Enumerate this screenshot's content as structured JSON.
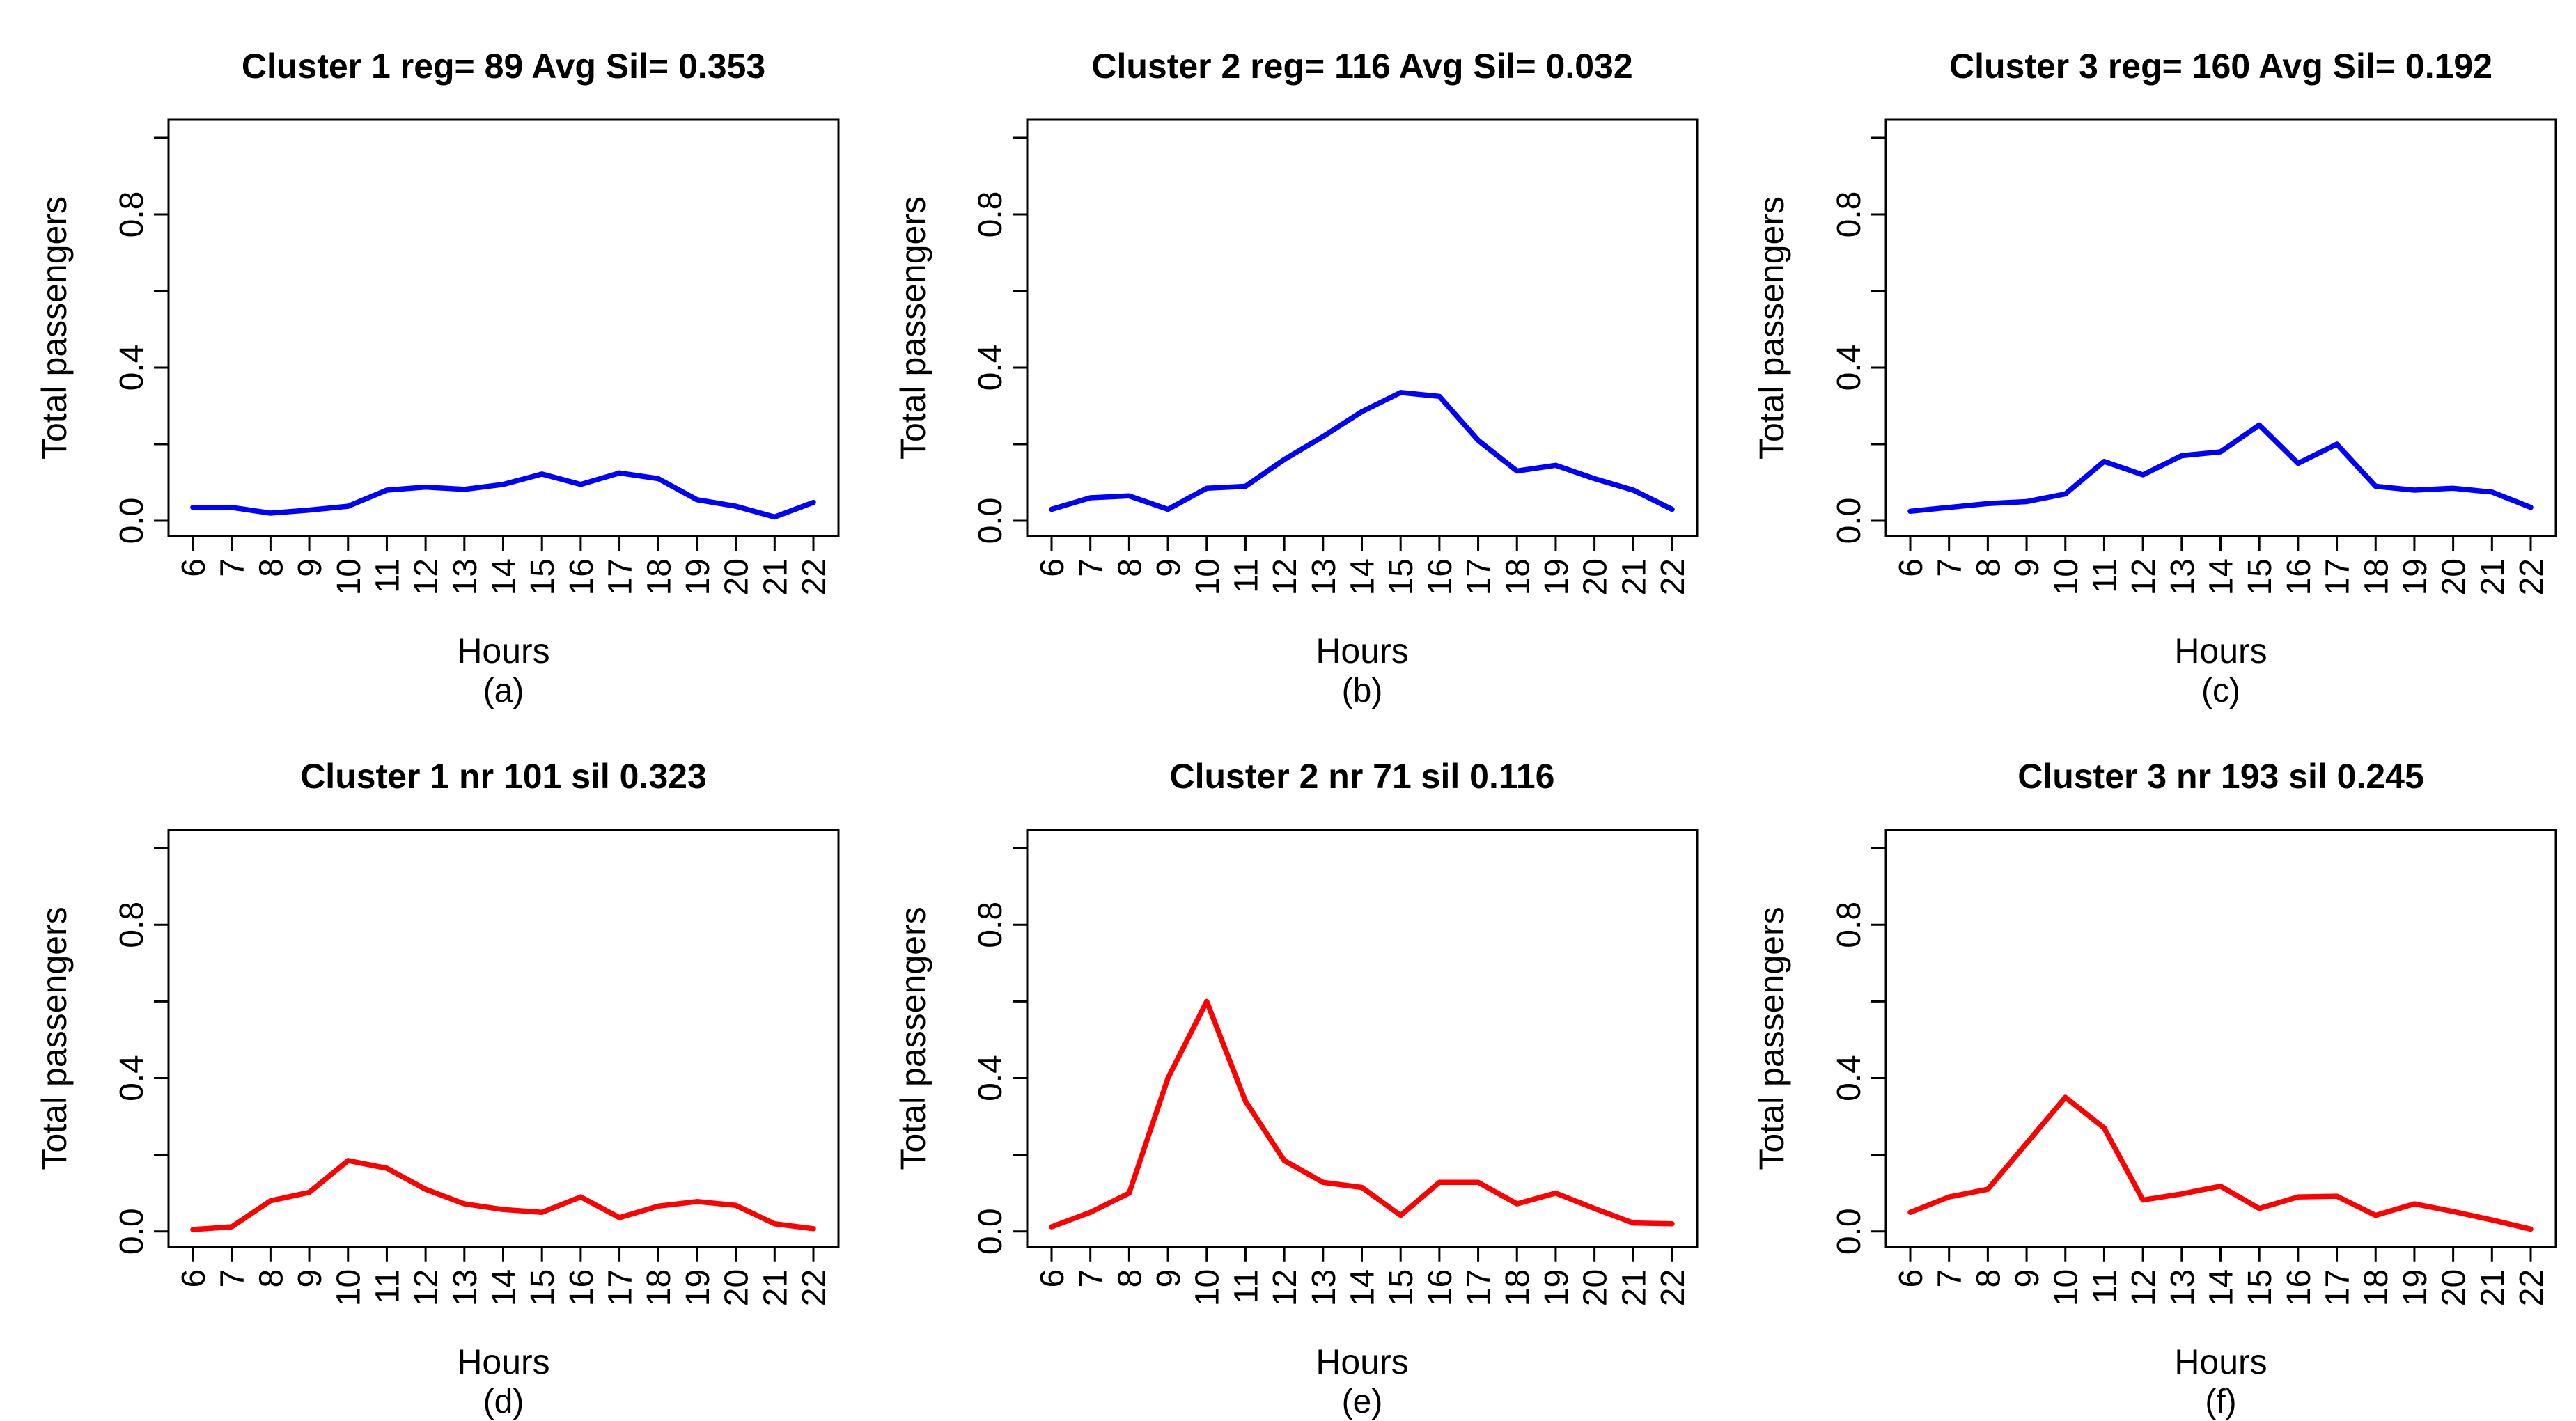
{
  "figure": {
    "background": "#ffffff",
    "axis_color": "#000000",
    "text_color": "#000000"
  },
  "chart_data": [
    {
      "type": "line",
      "panel": "(a)",
      "title": "Cluster 1 reg= 89 Avg Sil= 0.353",
      "xlabel": "Hours",
      "ylabel": "Total passengers",
      "line_color": "#0000ff",
      "x": [
        6,
        7,
        8,
        9,
        10,
        11,
        12,
        13,
        14,
        15,
        16,
        17,
        18,
        19,
        20,
        21,
        22
      ],
      "values": [
        0.035,
        0.035,
        0.02,
        0.028,
        0.038,
        0.08,
        0.088,
        0.082,
        0.095,
        0.122,
        0.095,
        0.125,
        0.11,
        0.055,
        0.038,
        0.01,
        0.048
      ],
      "ylim": [
        0,
        1
      ],
      "yticks": [
        0,
        0.2,
        0.4,
        0.6,
        0.8,
        1.0
      ],
      "ytick_labels": [
        "0.0",
        "",
        "0.4",
        "",
        "0.8",
        ""
      ],
      "grid": false,
      "legend": null
    },
    {
      "type": "line",
      "panel": "(b)",
      "title": "Cluster 2 reg= 116 Avg Sil= 0.032",
      "xlabel": "Hours",
      "ylabel": "Total passengers",
      "line_color": "#0000ff",
      "x": [
        6,
        7,
        8,
        9,
        10,
        11,
        12,
        13,
        14,
        15,
        16,
        17,
        18,
        19,
        20,
        21,
        22
      ],
      "values": [
        0.03,
        0.06,
        0.065,
        0.03,
        0.085,
        0.09,
        0.16,
        0.22,
        0.285,
        0.335,
        0.325,
        0.21,
        0.13,
        0.145,
        0.11,
        0.08,
        0.03
      ],
      "ylim": [
        0,
        1
      ],
      "yticks": [
        0,
        0.2,
        0.4,
        0.6,
        0.8,
        1.0
      ],
      "ytick_labels": [
        "0.0",
        "",
        "0.4",
        "",
        "0.8",
        ""
      ],
      "grid": false,
      "legend": null
    },
    {
      "type": "line",
      "panel": "(c)",
      "title": "Cluster 3 reg= 160 Avg Sil= 0.192",
      "xlabel": "Hours",
      "ylabel": "Total passengers",
      "line_color": "#0000ff",
      "x": [
        6,
        7,
        8,
        9,
        10,
        11,
        12,
        13,
        14,
        15,
        16,
        17,
        18,
        19,
        20,
        21,
        22
      ],
      "values": [
        0.025,
        0.035,
        0.045,
        0.05,
        0.07,
        0.155,
        0.12,
        0.17,
        0.18,
        0.25,
        0.15,
        0.2,
        0.09,
        0.08,
        0.085,
        0.075,
        0.035
      ],
      "ylim": [
        0,
        1
      ],
      "yticks": [
        0,
        0.2,
        0.4,
        0.6,
        0.8,
        1.0
      ],
      "ytick_labels": [
        "0.0",
        "",
        "0.4",
        "",
        "0.8",
        ""
      ],
      "grid": false,
      "legend": null
    },
    {
      "type": "line",
      "panel": "(d)",
      "title": "Cluster 1 nr 101 sil 0.323",
      "xlabel": "Hours",
      "ylabel": "Total passengers",
      "line_color": "#ff0000",
      "x": [
        6,
        7,
        8,
        9,
        10,
        11,
        12,
        13,
        14,
        15,
        16,
        17,
        18,
        19,
        20,
        21,
        22
      ],
      "values": [
        0.005,
        0.012,
        0.08,
        0.102,
        0.185,
        0.165,
        0.11,
        0.072,
        0.057,
        0.05,
        0.09,
        0.036,
        0.066,
        0.078,
        0.068,
        0.02,
        0.007
      ],
      "ylim": [
        0,
        1
      ],
      "yticks": [
        0,
        0.2,
        0.4,
        0.6,
        0.8,
        1.0
      ],
      "ytick_labels": [
        "0.0",
        "",
        "0.4",
        "",
        "0.8",
        ""
      ],
      "grid": false,
      "legend": null
    },
    {
      "type": "line",
      "panel": "(e)",
      "title": "Cluster 2 nr 71 sil 0.116",
      "xlabel": "Hours",
      "ylabel": "Total passengers",
      "line_color": "#ff0000",
      "x": [
        6,
        7,
        8,
        9,
        10,
        11,
        12,
        13,
        14,
        15,
        16,
        17,
        18,
        19,
        20,
        21,
        22
      ],
      "values": [
        0.012,
        0.05,
        0.1,
        0.4,
        0.6,
        0.34,
        0.185,
        0.128,
        0.115,
        0.042,
        0.128,
        0.128,
        0.072,
        0.1,
        0.06,
        0.022,
        0.02
      ],
      "ylim": [
        0,
        1
      ],
      "yticks": [
        0,
        0.2,
        0.4,
        0.6,
        0.8,
        1.0
      ],
      "ytick_labels": [
        "0.0",
        "",
        "0.4",
        "",
        "0.8",
        ""
      ],
      "grid": false,
      "legend": null
    },
    {
      "type": "line",
      "panel": "(f)",
      "title": "Cluster 3 nr 193 sil 0.245",
      "xlabel": "Hours",
      "ylabel": "Total passengers",
      "line_color": "#ff0000",
      "x": [
        6,
        7,
        8,
        9,
        10,
        11,
        12,
        13,
        14,
        15,
        16,
        17,
        18,
        19,
        20,
        21,
        22
      ],
      "values": [
        0.05,
        0.09,
        0.11,
        0.23,
        0.35,
        0.27,
        0.082,
        0.098,
        0.118,
        0.06,
        0.09,
        0.092,
        0.042,
        0.072,
        0.052,
        0.03,
        0.006
      ],
      "ylim": [
        0,
        1
      ],
      "yticks": [
        0,
        0.2,
        0.4,
        0.6,
        0.8,
        1.0
      ],
      "ytick_labels": [
        "0.0",
        "",
        "0.4",
        "",
        "0.8",
        ""
      ],
      "grid": false,
      "legend": null
    }
  ]
}
